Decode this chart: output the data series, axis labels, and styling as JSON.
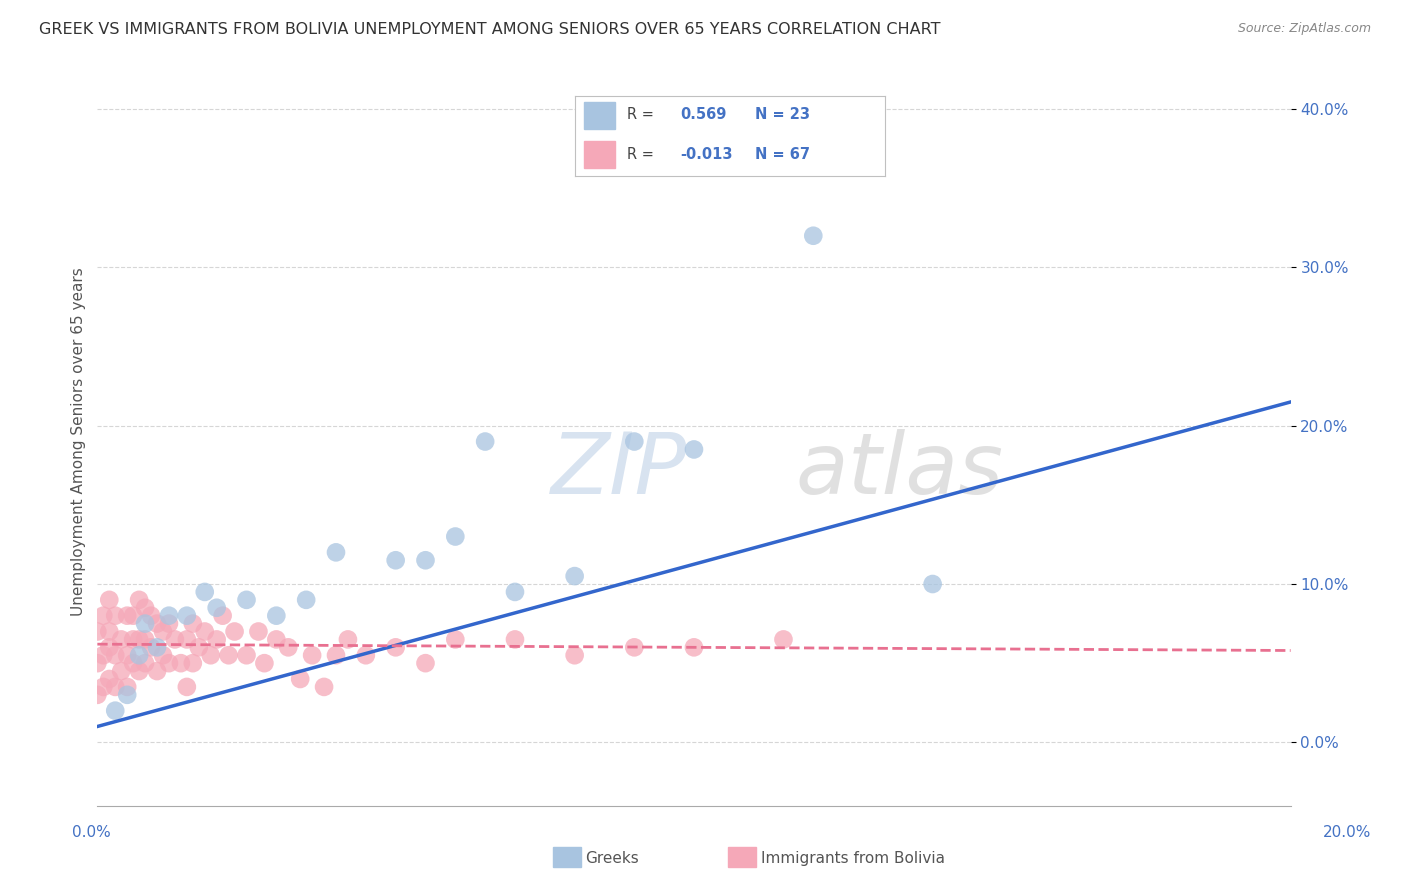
{
  "title": "GREEK VS IMMIGRANTS FROM BOLIVIA UNEMPLOYMENT AMONG SENIORS OVER 65 YEARS CORRELATION CHART",
  "source": "Source: ZipAtlas.com",
  "ylabel": "Unemployment Among Seniors over 65 years",
  "xlim": [
    0.0,
    0.2
  ],
  "ylim": [
    -0.04,
    0.42
  ],
  "yticks": [
    0.0,
    0.1,
    0.2,
    0.3,
    0.4
  ],
  "ytick_labels": [
    "0.0%",
    "10.0%",
    "20.0%",
    "30.0%",
    "40.0%"
  ],
  "xtick_labels": [
    "0.0%",
    "20.0%"
  ],
  "legend_R_greek": "0.569",
  "legend_N_greek": "23",
  "legend_R_bolivia": "-0.013",
  "legend_N_bolivia": "67",
  "greek_color": "#a8c4e0",
  "bolivia_color": "#f5a8b8",
  "greek_line_color": "#3366cc",
  "bolivia_line_color": "#e87090",
  "background_color": "#ffffff",
  "greek_scatter_x": [
    0.003,
    0.005,
    0.007,
    0.008,
    0.01,
    0.012,
    0.015,
    0.018,
    0.02,
    0.025,
    0.03,
    0.035,
    0.04,
    0.05,
    0.055,
    0.06,
    0.065,
    0.07,
    0.08,
    0.09,
    0.1,
    0.12,
    0.14
  ],
  "greek_scatter_y": [
    0.02,
    0.03,
    0.055,
    0.075,
    0.06,
    0.08,
    0.08,
    0.095,
    0.085,
    0.09,
    0.08,
    0.09,
    0.12,
    0.115,
    0.115,
    0.13,
    0.19,
    0.095,
    0.105,
    0.19,
    0.185,
    0.32,
    0.1
  ],
  "bolivia_scatter_x": [
    0.0,
    0.0,
    0.0,
    0.001,
    0.001,
    0.001,
    0.002,
    0.002,
    0.002,
    0.002,
    0.003,
    0.003,
    0.003,
    0.004,
    0.004,
    0.005,
    0.005,
    0.005,
    0.006,
    0.006,
    0.006,
    0.007,
    0.007,
    0.007,
    0.008,
    0.008,
    0.008,
    0.009,
    0.009,
    0.01,
    0.01,
    0.011,
    0.011,
    0.012,
    0.012,
    0.013,
    0.014,
    0.015,
    0.015,
    0.016,
    0.016,
    0.017,
    0.018,
    0.019,
    0.02,
    0.021,
    0.022,
    0.023,
    0.025,
    0.027,
    0.028,
    0.03,
    0.032,
    0.034,
    0.036,
    0.038,
    0.04,
    0.042,
    0.045,
    0.05,
    0.055,
    0.06,
    0.07,
    0.08,
    0.09,
    0.1,
    0.115
  ],
  "bolivia_scatter_y": [
    0.03,
    0.05,
    0.07,
    0.035,
    0.055,
    0.08,
    0.04,
    0.06,
    0.07,
    0.09,
    0.035,
    0.055,
    0.08,
    0.045,
    0.065,
    0.035,
    0.055,
    0.08,
    0.05,
    0.065,
    0.08,
    0.045,
    0.065,
    0.09,
    0.05,
    0.065,
    0.085,
    0.06,
    0.08,
    0.045,
    0.075,
    0.055,
    0.07,
    0.05,
    0.075,
    0.065,
    0.05,
    0.035,
    0.065,
    0.05,
    0.075,
    0.06,
    0.07,
    0.055,
    0.065,
    0.08,
    0.055,
    0.07,
    0.055,
    0.07,
    0.05,
    0.065,
    0.06,
    0.04,
    0.055,
    0.035,
    0.055,
    0.065,
    0.055,
    0.06,
    0.05,
    0.065,
    0.065,
    0.055,
    0.06,
    0.06,
    0.065
  ],
  "greek_trend_x": [
    0.0,
    0.2
  ],
  "greek_trend_y": [
    0.01,
    0.215
  ],
  "bolivia_trend_x": [
    0.0,
    0.2
  ],
  "bolivia_trend_y": [
    0.062,
    0.058
  ]
}
